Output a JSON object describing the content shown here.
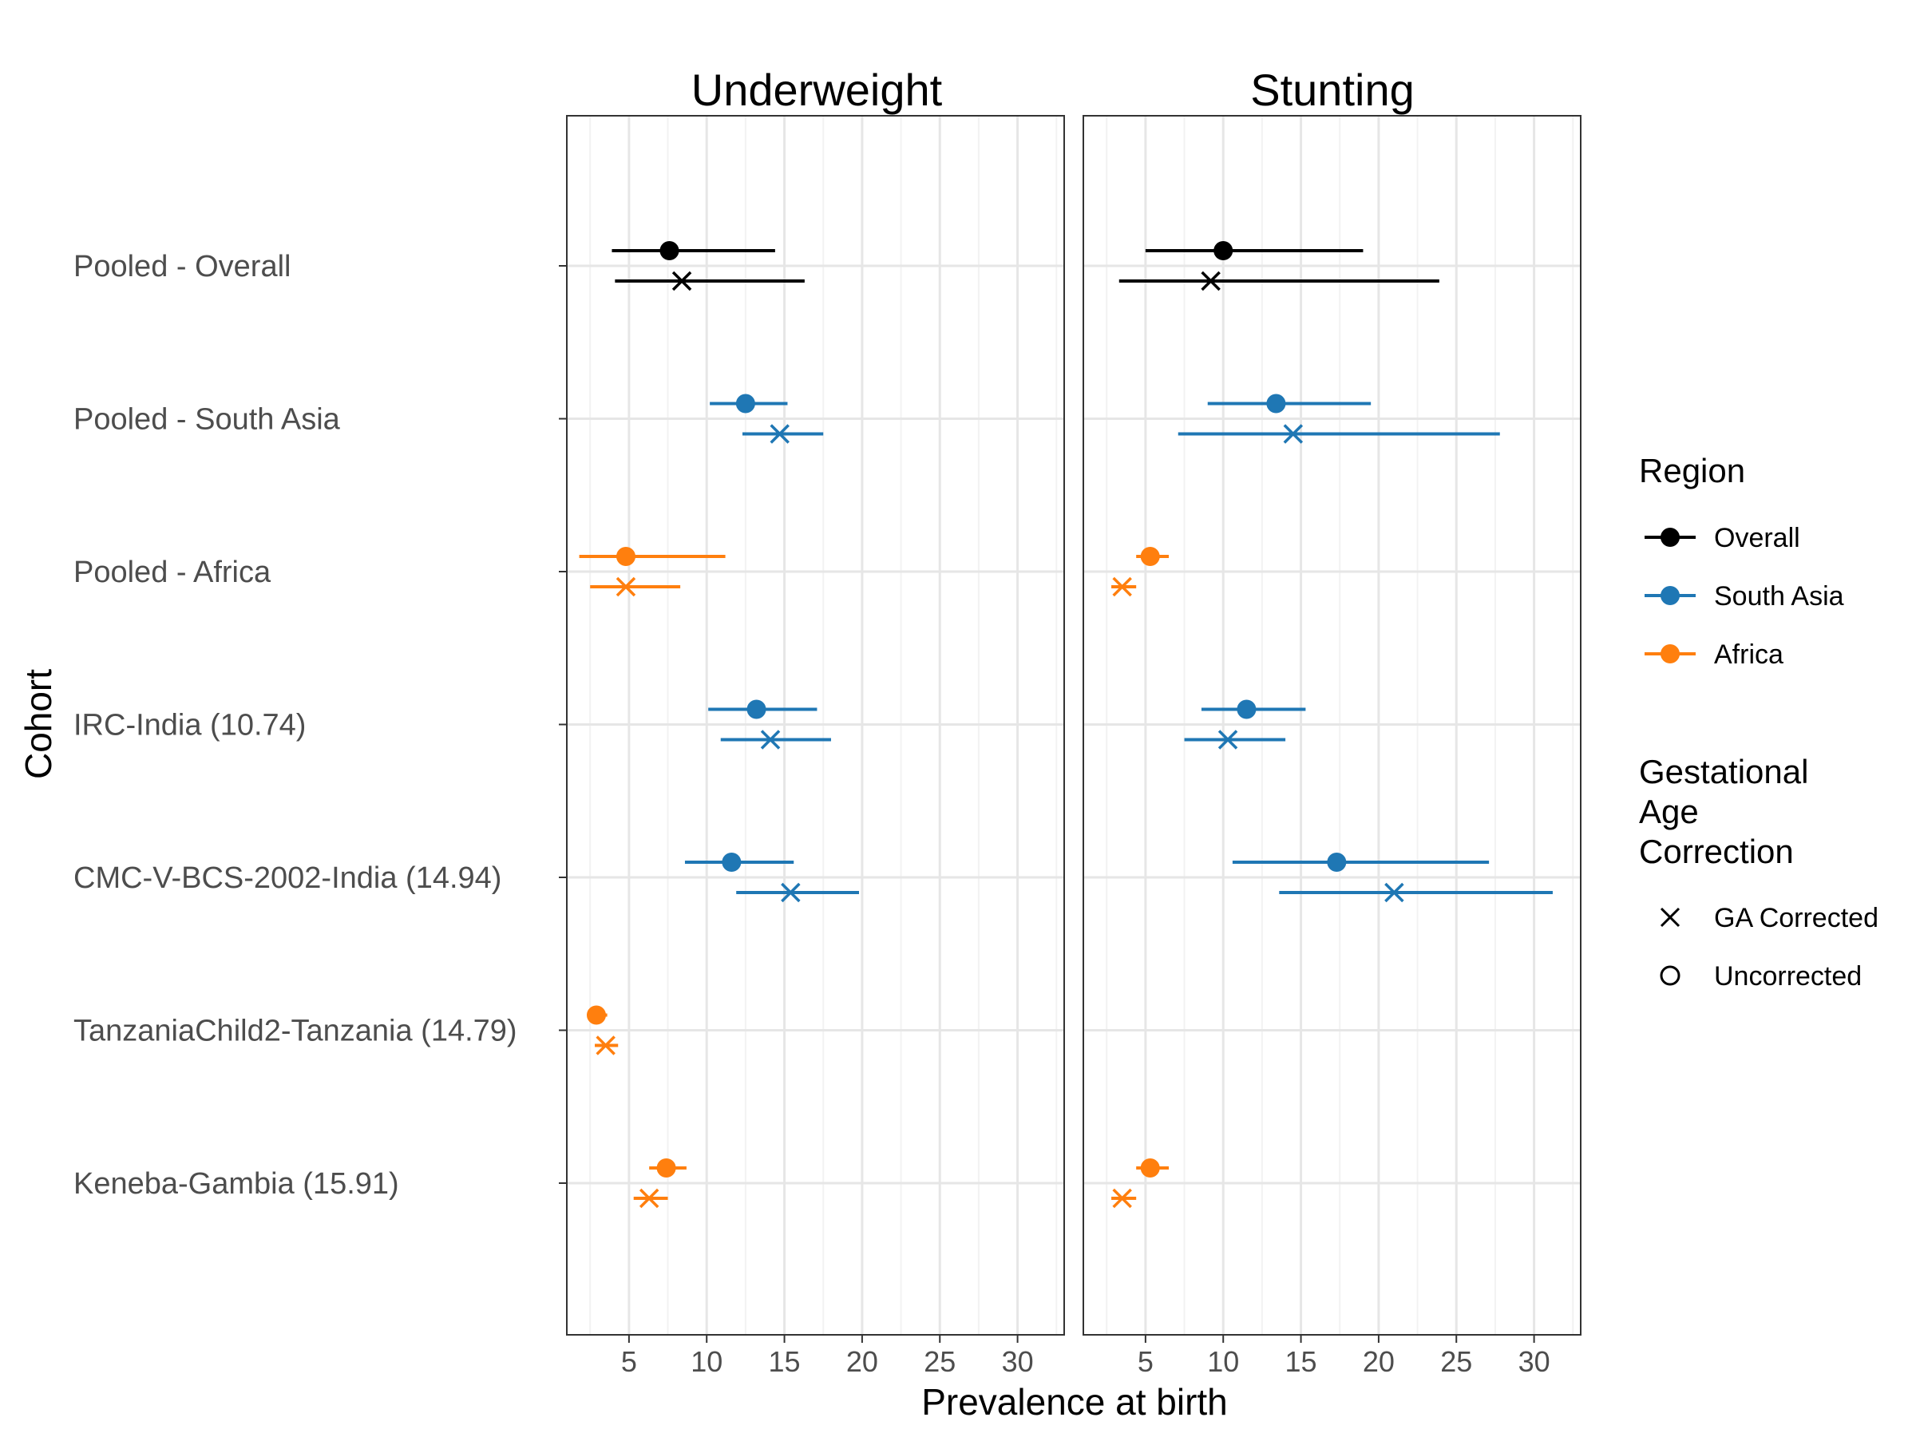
{
  "chart_data": {
    "type": "forest",
    "facets": [
      "Underweight",
      "Stunting"
    ],
    "xlabel": "Prevalence at birth",
    "ylabel": "Cohort",
    "xlim": [
      1,
      33
    ],
    "xticks": [
      5,
      10,
      15,
      20,
      25,
      30
    ],
    "grid": true,
    "cohorts": [
      "Pooled - Overall",
      "Pooled - South Asia",
      "Pooled - Africa",
      "IRC-India (10.74)",
      "CMC-V-BCS-2002-India (14.94)",
      "TanzaniaChild2-Tanzania (14.79)",
      "Keneba-Gambia (15.91)"
    ],
    "legend": {
      "region_title": "Region",
      "regions": [
        {
          "name": "Overall",
          "color": "#000000"
        },
        {
          "name": "South Asia",
          "color": "#1F77B4"
        },
        {
          "name": "Africa",
          "color": "#FF7F0E"
        }
      ],
      "correction_title": [
        "Gestational",
        "Age",
        "Correction"
      ],
      "corrections": [
        {
          "name": "GA Corrected",
          "shape": "x"
        },
        {
          "name": "Uncorrected",
          "shape": "circle"
        }
      ],
      "position": "right"
    },
    "estimates": [
      {
        "facet": "Underweight",
        "cohort": 0,
        "region": "Overall",
        "correction": "Uncorrected",
        "est": 7.6,
        "lo": 3.9,
        "hi": 14.4
      },
      {
        "facet": "Underweight",
        "cohort": 0,
        "region": "Overall",
        "correction": "GA Corrected",
        "est": 8.4,
        "lo": 4.1,
        "hi": 16.3
      },
      {
        "facet": "Underweight",
        "cohort": 1,
        "region": "South Asia",
        "correction": "Uncorrected",
        "est": 12.5,
        "lo": 10.2,
        "hi": 15.2
      },
      {
        "facet": "Underweight",
        "cohort": 1,
        "region": "South Asia",
        "correction": "GA Corrected",
        "est": 14.7,
        "lo": 12.3,
        "hi": 17.5
      },
      {
        "facet": "Underweight",
        "cohort": 2,
        "region": "Africa",
        "correction": "Uncorrected",
        "est": 4.8,
        "lo": 1.8,
        "hi": 11.2
      },
      {
        "facet": "Underweight",
        "cohort": 2,
        "region": "Africa",
        "correction": "GA Corrected",
        "est": 4.8,
        "lo": 2.5,
        "hi": 8.3
      },
      {
        "facet": "Underweight",
        "cohort": 3,
        "region": "South Asia",
        "correction": "Uncorrected",
        "est": 13.2,
        "lo": 10.1,
        "hi": 17.1
      },
      {
        "facet": "Underweight",
        "cohort": 3,
        "region": "South Asia",
        "correction": "GA Corrected",
        "est": 14.1,
        "lo": 10.9,
        "hi": 18.0
      },
      {
        "facet": "Underweight",
        "cohort": 4,
        "region": "South Asia",
        "correction": "Uncorrected",
        "est": 11.6,
        "lo": 8.6,
        "hi": 15.6
      },
      {
        "facet": "Underweight",
        "cohort": 4,
        "region": "South Asia",
        "correction": "GA Corrected",
        "est": 15.4,
        "lo": 11.9,
        "hi": 19.8
      },
      {
        "facet": "Underweight",
        "cohort": 5,
        "region": "Africa",
        "correction": "Uncorrected",
        "est": 2.9,
        "lo": 2.4,
        "hi": 3.6
      },
      {
        "facet": "Underweight",
        "cohort": 5,
        "region": "Africa",
        "correction": "GA Corrected",
        "est": 3.5,
        "lo": 2.8,
        "hi": 4.3
      },
      {
        "facet": "Underweight",
        "cohort": 6,
        "region": "Africa",
        "correction": "Uncorrected",
        "est": 7.4,
        "lo": 6.3,
        "hi": 8.7
      },
      {
        "facet": "Underweight",
        "cohort": 6,
        "region": "Africa",
        "correction": "GA Corrected",
        "est": 6.3,
        "lo": 5.3,
        "hi": 7.5
      },
      {
        "facet": "Stunting",
        "cohort": 0,
        "region": "Overall",
        "correction": "Uncorrected",
        "est": 10.0,
        "lo": 5.0,
        "hi": 19.0
      },
      {
        "facet": "Stunting",
        "cohort": 0,
        "region": "Overall",
        "correction": "GA Corrected",
        "est": 9.2,
        "lo": 3.3,
        "hi": 23.9
      },
      {
        "facet": "Stunting",
        "cohort": 1,
        "region": "South Asia",
        "correction": "Uncorrected",
        "est": 13.4,
        "lo": 9.0,
        "hi": 19.5
      },
      {
        "facet": "Stunting",
        "cohort": 1,
        "region": "South Asia",
        "correction": "GA Corrected",
        "est": 14.5,
        "lo": 7.1,
        "hi": 27.8
      },
      {
        "facet": "Stunting",
        "cohort": 2,
        "region": "Africa",
        "correction": "Uncorrected",
        "est": 5.3,
        "lo": 4.4,
        "hi": 6.5
      },
      {
        "facet": "Stunting",
        "cohort": 2,
        "region": "Africa",
        "correction": "GA Corrected",
        "est": 3.5,
        "lo": 2.8,
        "hi": 4.4
      },
      {
        "facet": "Stunting",
        "cohort": 3,
        "region": "South Asia",
        "correction": "Uncorrected",
        "est": 11.5,
        "lo": 8.6,
        "hi": 15.3
      },
      {
        "facet": "Stunting",
        "cohort": 3,
        "region": "South Asia",
        "correction": "GA Corrected",
        "est": 10.3,
        "lo": 7.5,
        "hi": 14.0
      },
      {
        "facet": "Stunting",
        "cohort": 4,
        "region": "South Asia",
        "correction": "Uncorrected",
        "est": 17.3,
        "lo": 10.6,
        "hi": 27.1
      },
      {
        "facet": "Stunting",
        "cohort": 4,
        "region": "South Asia",
        "correction": "GA Corrected",
        "est": 21.0,
        "lo": 13.6,
        "hi": 31.2
      },
      {
        "facet": "Stunting",
        "cohort": 6,
        "region": "Africa",
        "correction": "Uncorrected",
        "est": 5.3,
        "lo": 4.4,
        "hi": 6.5
      },
      {
        "facet": "Stunting",
        "cohort": 6,
        "region": "Africa",
        "correction": "GA Corrected",
        "est": 3.5,
        "lo": 2.8,
        "hi": 4.4
      }
    ]
  }
}
